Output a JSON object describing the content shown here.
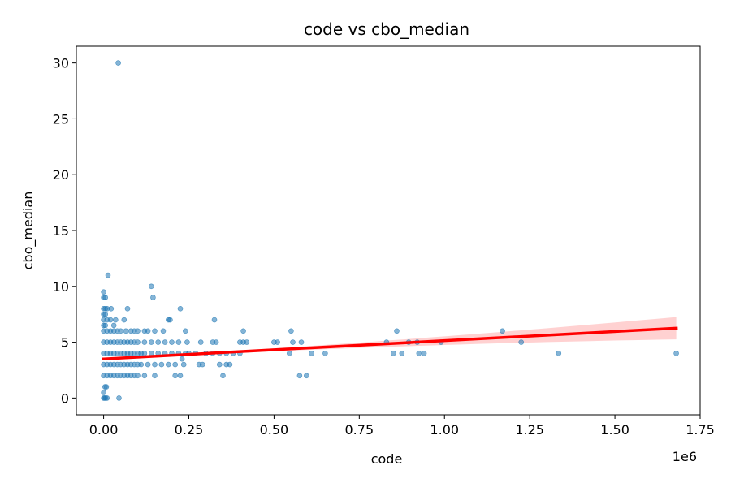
{
  "chart_data": {
    "type": "scatter",
    "title": "code vs cbo_median",
    "xlabel": "code",
    "ylabel": "cbo_median",
    "x_offset_label": "1e6",
    "xlim": [
      -0.08,
      1.75
    ],
    "ylim": [
      -1.5,
      31.5
    ],
    "x_scale_factor": 1000000,
    "xticks": [
      0.0,
      0.25,
      0.5,
      0.75,
      1.0,
      1.25,
      1.5,
      1.75
    ],
    "xtick_labels": [
      "0.00",
      "0.25",
      "0.50",
      "0.75",
      "1.00",
      "1.25",
      "1.50",
      "1.75"
    ],
    "yticks": [
      0,
      5,
      10,
      15,
      20,
      25,
      30
    ],
    "ytick_labels": [
      "0",
      "5",
      "10",
      "15",
      "20",
      "25",
      "30"
    ],
    "grid": false,
    "point_color": "#1f77b4",
    "fit_color": "#ff0000",
    "band_color": "#ffb3b3",
    "regression": {
      "x": [
        0.0,
        1.68
      ],
      "y": [
        3.5,
        6.25
      ],
      "band_halfwidth_start": 0.05,
      "band_halfwidth_end": 1.0
    },
    "points": [
      [
        0.0,
        0.0
      ],
      [
        0.003,
        0.0
      ],
      [
        0.006,
        0.0
      ],
      [
        0.01,
        0.0
      ],
      [
        0.045,
        0.0
      ],
      [
        0.0,
        0.5
      ],
      [
        0.004,
        1.0
      ],
      [
        0.008,
        1.0
      ],
      [
        0.0,
        2.0
      ],
      [
        0.01,
        2.0
      ],
      [
        0.02,
        2.0
      ],
      [
        0.03,
        2.0
      ],
      [
        0.04,
        2.0
      ],
      [
        0.05,
        2.0
      ],
      [
        0.06,
        2.0
      ],
      [
        0.07,
        2.0
      ],
      [
        0.08,
        2.0
      ],
      [
        0.09,
        2.0
      ],
      [
        0.1,
        2.0
      ],
      [
        0.12,
        2.0
      ],
      [
        0.15,
        2.0
      ],
      [
        0.21,
        2.0
      ],
      [
        0.225,
        2.0
      ],
      [
        0.35,
        2.0
      ],
      [
        0.575,
        2.0
      ],
      [
        0.595,
        2.0
      ],
      [
        0.0,
        3.0
      ],
      [
        0.01,
        3.0
      ],
      [
        0.02,
        3.0
      ],
      [
        0.03,
        3.0
      ],
      [
        0.04,
        3.0
      ],
      [
        0.05,
        3.0
      ],
      [
        0.06,
        3.0
      ],
      [
        0.07,
        3.0
      ],
      [
        0.08,
        3.0
      ],
      [
        0.09,
        3.0
      ],
      [
        0.1,
        3.0
      ],
      [
        0.11,
        3.0
      ],
      [
        0.13,
        3.0
      ],
      [
        0.15,
        3.0
      ],
      [
        0.17,
        3.0
      ],
      [
        0.19,
        3.0
      ],
      [
        0.21,
        3.0
      ],
      [
        0.235,
        3.0
      ],
      [
        0.28,
        3.0
      ],
      [
        0.29,
        3.0
      ],
      [
        0.34,
        3.0
      ],
      [
        0.36,
        3.0
      ],
      [
        0.37,
        3.0
      ],
      [
        0.23,
        3.5
      ],
      [
        0.0,
        4.0
      ],
      [
        0.01,
        4.0
      ],
      [
        0.02,
        4.0
      ],
      [
        0.03,
        4.0
      ],
      [
        0.04,
        4.0
      ],
      [
        0.05,
        4.0
      ],
      [
        0.06,
        4.0
      ],
      [
        0.07,
        4.0
      ],
      [
        0.08,
        4.0
      ],
      [
        0.09,
        4.0
      ],
      [
        0.1,
        4.0
      ],
      [
        0.11,
        4.0
      ],
      [
        0.12,
        4.0
      ],
      [
        0.14,
        4.0
      ],
      [
        0.16,
        4.0
      ],
      [
        0.18,
        4.0
      ],
      [
        0.2,
        4.0
      ],
      [
        0.22,
        4.0
      ],
      [
        0.24,
        4.0
      ],
      [
        0.25,
        4.0
      ],
      [
        0.27,
        4.0
      ],
      [
        0.3,
        4.0
      ],
      [
        0.32,
        4.0
      ],
      [
        0.34,
        4.0
      ],
      [
        0.36,
        4.0
      ],
      [
        0.38,
        4.0
      ],
      [
        0.4,
        4.0
      ],
      [
        0.545,
        4.0
      ],
      [
        0.61,
        4.0
      ],
      [
        0.65,
        4.0
      ],
      [
        0.85,
        4.0
      ],
      [
        0.875,
        4.0
      ],
      [
        0.925,
        4.0
      ],
      [
        0.94,
        4.0
      ],
      [
        1.335,
        4.0
      ],
      [
        1.68,
        4.0
      ],
      [
        0.0,
        5.0
      ],
      [
        0.01,
        5.0
      ],
      [
        0.02,
        5.0
      ],
      [
        0.03,
        5.0
      ],
      [
        0.04,
        5.0
      ],
      [
        0.05,
        5.0
      ],
      [
        0.06,
        5.0
      ],
      [
        0.07,
        5.0
      ],
      [
        0.08,
        5.0
      ],
      [
        0.09,
        5.0
      ],
      [
        0.1,
        5.0
      ],
      [
        0.12,
        5.0
      ],
      [
        0.14,
        5.0
      ],
      [
        0.16,
        5.0
      ],
      [
        0.18,
        5.0
      ],
      [
        0.2,
        5.0
      ],
      [
        0.22,
        5.0
      ],
      [
        0.245,
        5.0
      ],
      [
        0.285,
        5.0
      ],
      [
        0.32,
        5.0
      ],
      [
        0.33,
        5.0
      ],
      [
        0.4,
        5.0
      ],
      [
        0.41,
        5.0
      ],
      [
        0.42,
        5.0
      ],
      [
        0.5,
        5.0
      ],
      [
        0.51,
        5.0
      ],
      [
        0.555,
        5.0
      ],
      [
        0.58,
        5.0
      ],
      [
        0.83,
        5.0
      ],
      [
        0.895,
        5.0
      ],
      [
        0.92,
        5.0
      ],
      [
        0.99,
        5.0
      ],
      [
        1.225,
        5.0
      ],
      [
        0.0,
        6.0
      ],
      [
        0.01,
        6.0
      ],
      [
        0.02,
        6.0
      ],
      [
        0.03,
        6.0
      ],
      [
        0.04,
        6.0
      ],
      [
        0.05,
        6.0
      ],
      [
        0.065,
        6.0
      ],
      [
        0.08,
        6.0
      ],
      [
        0.09,
        6.0
      ],
      [
        0.1,
        6.0
      ],
      [
        0.12,
        6.0
      ],
      [
        0.13,
        6.0
      ],
      [
        0.15,
        6.0
      ],
      [
        0.175,
        6.0
      ],
      [
        0.24,
        6.0
      ],
      [
        0.41,
        6.0
      ],
      [
        0.55,
        6.0
      ],
      [
        0.86,
        6.0
      ],
      [
        1.17,
        6.0
      ],
      [
        0.0,
        6.5
      ],
      [
        0.005,
        6.5
      ],
      [
        0.03,
        6.5
      ],
      [
        0.0,
        7.0
      ],
      [
        0.01,
        7.0
      ],
      [
        0.02,
        7.0
      ],
      [
        0.035,
        7.0
      ],
      [
        0.06,
        7.0
      ],
      [
        0.19,
        7.0
      ],
      [
        0.195,
        7.0
      ],
      [
        0.325,
        7.0
      ],
      [
        0.0,
        7.5
      ],
      [
        0.005,
        7.5
      ],
      [
        0.0,
        8.0
      ],
      [
        0.005,
        8.0
      ],
      [
        0.01,
        8.0
      ],
      [
        0.022,
        8.0
      ],
      [
        0.07,
        8.0
      ],
      [
        0.225,
        8.0
      ],
      [
        0.0,
        9.0
      ],
      [
        0.005,
        9.0
      ],
      [
        0.145,
        9.0
      ],
      [
        0.0,
        9.5
      ],
      [
        0.14,
        10.0
      ],
      [
        0.013,
        11.0
      ],
      [
        0.043,
        30.0
      ]
    ]
  }
}
